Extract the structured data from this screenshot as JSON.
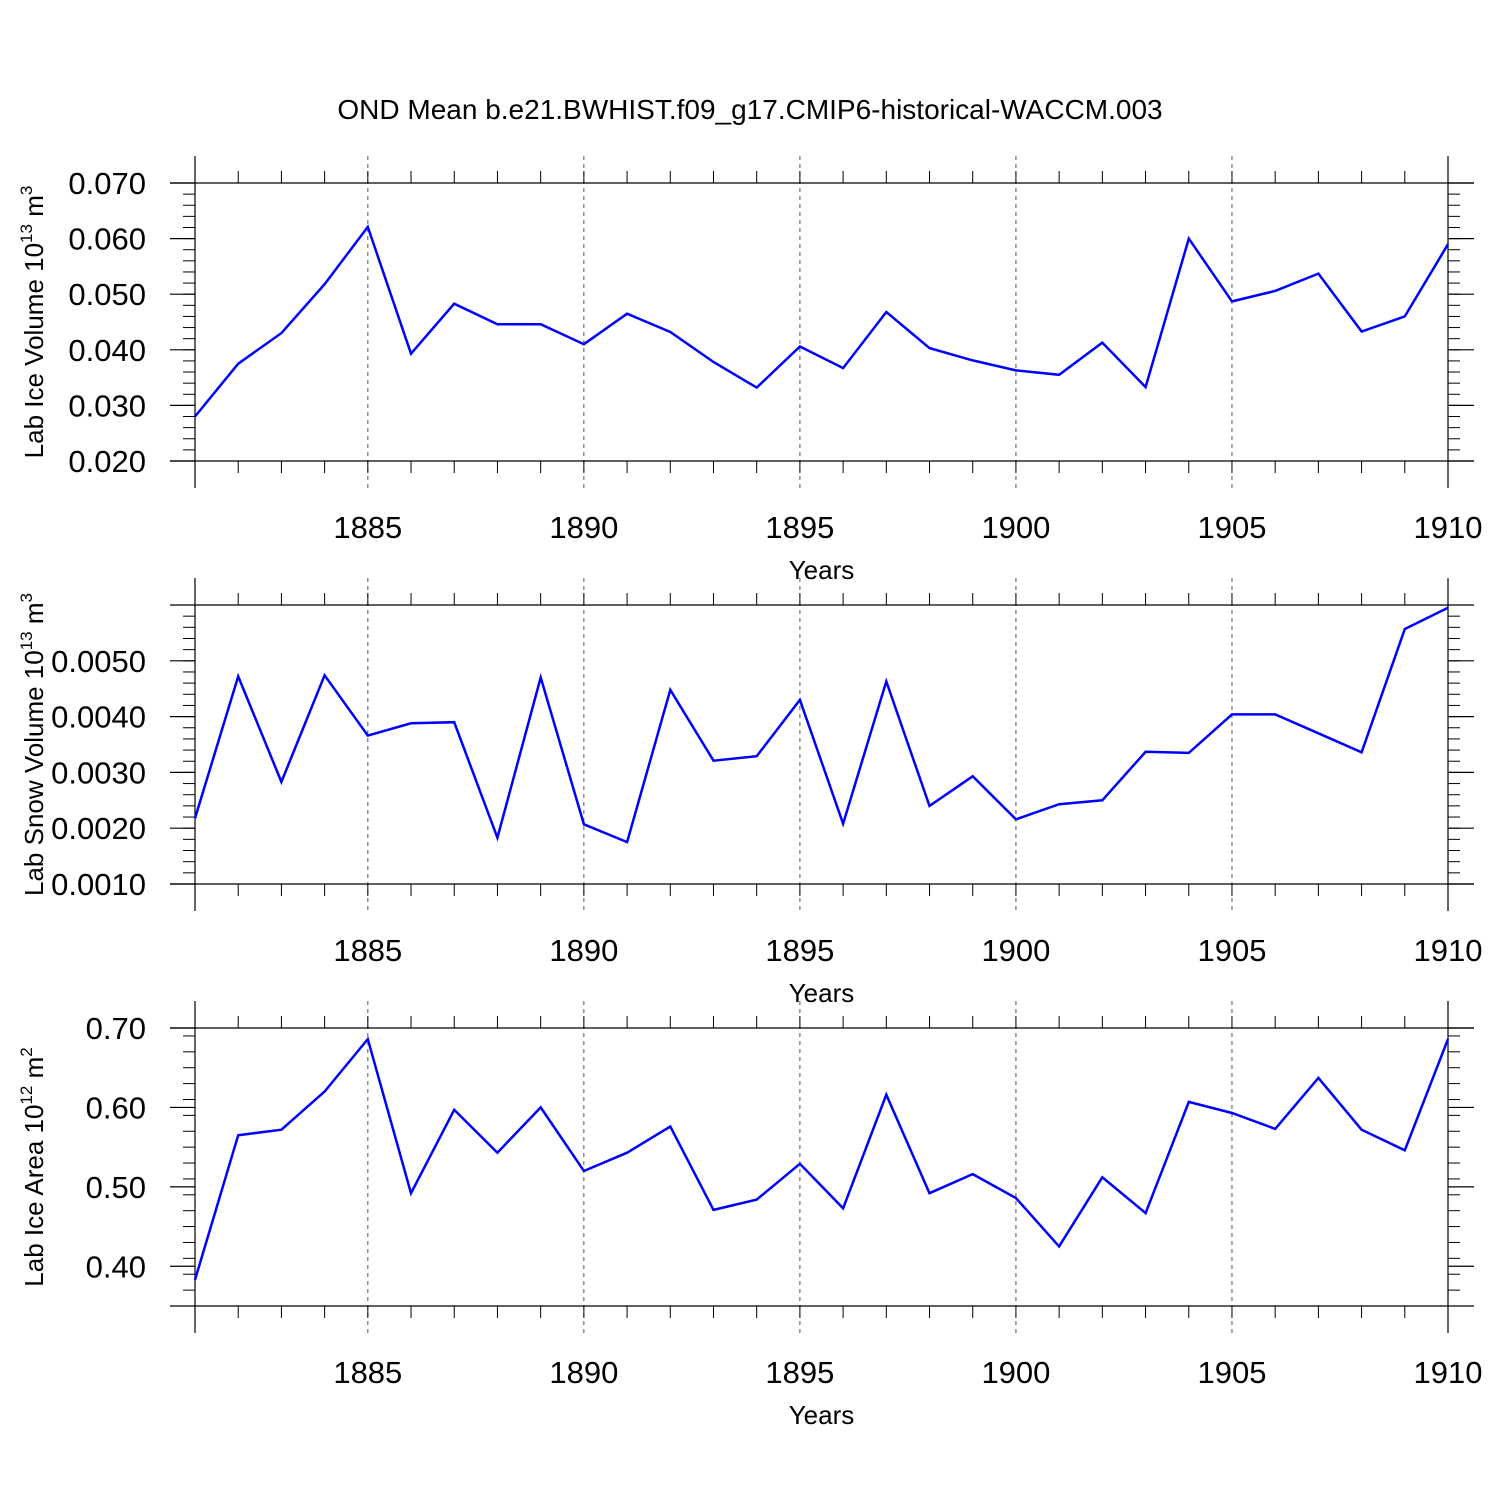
{
  "title": "OND Mean b.e21.BWHIST.f09_g17.CMIP6-historical-WACCM.003",
  "line_color": "#0000ff",
  "chart_data": [
    {
      "type": "line",
      "ylabel": "Lab Ice Volume 10",
      "ylabel_sup": "13",
      "ylabel_unit": " m",
      "ylabel_unit_sup": "3",
      "xlabel": "Years",
      "xlim": [
        1881,
        1910
      ],
      "ylim": [
        0.02,
        0.07
      ],
      "y_ticks": [
        "0.020",
        "0.030",
        "0.040",
        "0.050",
        "0.060",
        "0.070"
      ],
      "x_ticks": [
        "1885",
        "1890",
        "1895",
        "1900",
        "1905",
        "1910"
      ],
      "x": [
        1881,
        1882,
        1883,
        1884,
        1885,
        1886,
        1887,
        1888,
        1889,
        1890,
        1891,
        1892,
        1893,
        1894,
        1895,
        1896,
        1897,
        1898,
        1899,
        1900,
        1901,
        1902,
        1903,
        1904,
        1905,
        1906,
        1907,
        1908,
        1909,
        1910
      ],
      "values": [
        0.028,
        0.0375,
        0.043,
        0.0518,
        0.0621,
        0.0393,
        0.0483,
        0.0446,
        0.0446,
        0.041,
        0.0465,
        0.0432,
        0.0378,
        0.0332,
        0.0406,
        0.0367,
        0.0468,
        0.0403,
        0.0381,
        0.0363,
        0.0355,
        0.0413,
        0.0333,
        0.06,
        0.0487,
        0.0506,
        0.0537,
        0.0433,
        0.046,
        0.059
      ]
    },
    {
      "type": "line",
      "ylabel": "Lab Snow Volume 10",
      "ylabel_sup": "13",
      "ylabel_unit": " m",
      "ylabel_unit_sup": "3",
      "xlabel": "Years",
      "xlim": [
        1881,
        1910
      ],
      "ylim": [
        0.001,
        0.006
      ],
      "y_ticks": [
        "0.0010",
        "0.0020",
        "0.0030",
        "0.0040",
        "0.0050"
      ],
      "x_ticks": [
        "1885",
        "1890",
        "1895",
        "1900",
        "1905",
        "1910"
      ],
      "x": [
        1881,
        1882,
        1883,
        1884,
        1885,
        1886,
        1887,
        1888,
        1889,
        1890,
        1891,
        1892,
        1893,
        1894,
        1895,
        1896,
        1897,
        1898,
        1899,
        1900,
        1901,
        1902,
        1903,
        1904,
        1905,
        1906,
        1907,
        1908,
        1909,
        1910
      ],
      "values": [
        0.00218,
        0.00472,
        0.00283,
        0.00474,
        0.00366,
        0.00388,
        0.0039,
        0.00183,
        0.0047,
        0.00207,
        0.00175,
        0.00448,
        0.00321,
        0.00329,
        0.0043,
        0.00208,
        0.00463,
        0.0024,
        0.00293,
        0.00216,
        0.00243,
        0.0025,
        0.00337,
        0.00335,
        0.00404,
        0.00404,
        0.0037,
        0.00336,
        0.00557,
        0.00595
      ]
    },
    {
      "type": "line",
      "ylabel": "Lab Ice Area 10",
      "ylabel_sup": "12",
      "ylabel_unit": " m",
      "ylabel_unit_sup": "2",
      "xlabel": "Years",
      "xlim": [
        1881,
        1910
      ],
      "ylim": [
        0.35,
        0.7
      ],
      "y_ticks": [
        "0.40",
        "0.50",
        "0.60",
        "0.70"
      ],
      "x_ticks": [
        "1885",
        "1890",
        "1895",
        "1900",
        "1905",
        "1910"
      ],
      "x": [
        1881,
        1882,
        1883,
        1884,
        1885,
        1886,
        1887,
        1888,
        1889,
        1890,
        1891,
        1892,
        1893,
        1894,
        1895,
        1896,
        1897,
        1898,
        1899,
        1900,
        1901,
        1902,
        1903,
        1904,
        1905,
        1906,
        1907,
        1908,
        1909,
        1910
      ],
      "values": [
        0.383,
        0.565,
        0.572,
        0.62,
        0.686,
        0.492,
        0.597,
        0.543,
        0.6,
        0.52,
        0.543,
        0.576,
        0.471,
        0.484,
        0.529,
        0.473,
        0.616,
        0.492,
        0.516,
        0.486,
        0.425,
        0.512,
        0.467,
        0.607,
        0.593,
        0.573,
        0.637,
        0.572,
        0.546,
        0.686
      ]
    }
  ]
}
